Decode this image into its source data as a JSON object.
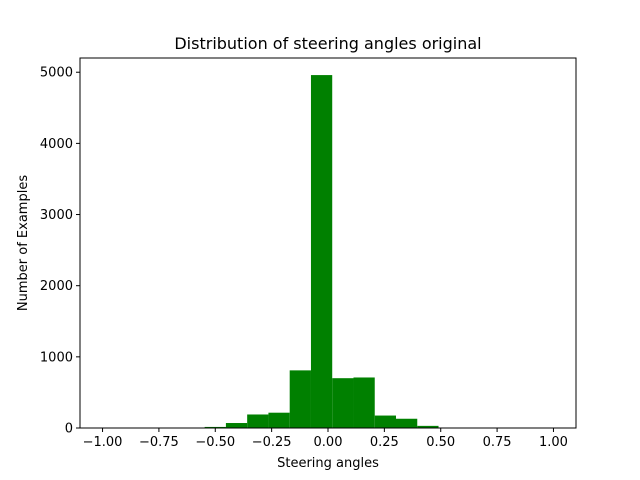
{
  "chart_data": {
    "type": "bar",
    "title": "Distribution of steering angles original",
    "xlabel": "Steering angles",
    "ylabel": "Number of Examples",
    "xlim": [
      -1.1,
      1.1
    ],
    "ylim": [
      0,
      5200
    ],
    "xticks": [
      -1.0,
      -0.75,
      -0.5,
      -0.25,
      0.0,
      0.25,
      0.5,
      0.75,
      1.0
    ],
    "xtick_labels": [
      "−1.00",
      "−0.75",
      "−0.50",
      "−0.25",
      "0.00",
      "0.25",
      "0.50",
      "0.75",
      "1.00"
    ],
    "yticks": [
      0,
      1000,
      2000,
      3000,
      4000,
      5000
    ],
    "ytick_labels": [
      "0",
      "1000",
      "2000",
      "3000",
      "4000",
      "5000"
    ],
    "bin_width": 0.0943,
    "bins": [
      {
        "x0": -0.5471,
        "count": 15
      },
      {
        "x0": -0.4528,
        "count": 70
      },
      {
        "x0": -0.3585,
        "count": 190
      },
      {
        "x0": -0.2642,
        "count": 215
      },
      {
        "x0": -0.1699,
        "count": 810
      },
      {
        "x0": -0.0756,
        "count": 4960
      },
      {
        "x0": 0.0187,
        "count": 700
      },
      {
        "x0": 0.113,
        "count": 710
      },
      {
        "x0": 0.2073,
        "count": 175
      },
      {
        "x0": 0.3016,
        "count": 130
      },
      {
        "x0": 0.3959,
        "count": 30
      }
    ],
    "bar_color": "#008000",
    "grid": false
  }
}
